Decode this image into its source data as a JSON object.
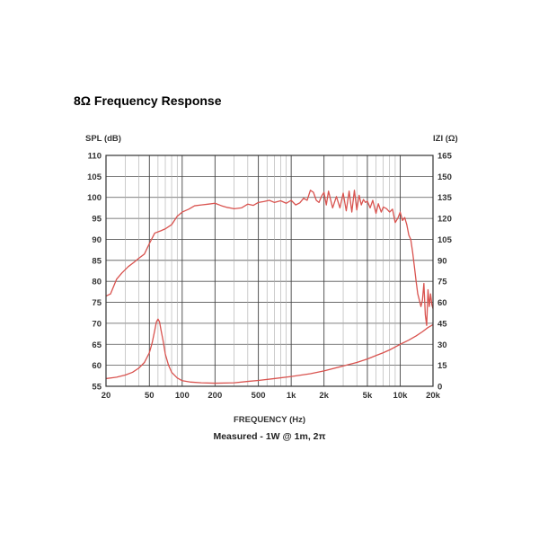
{
  "page_title": "8Ω Frequency Response",
  "chart_data": {
    "type": "line",
    "left_axis_label": "SPL (dB)",
    "right_axis_label": "IZI (Ω)",
    "xlabel": "FREQUENCY (Hz)",
    "caption": "Measured - 1W @ 1m, 2π",
    "x_scale": "log",
    "xlim": [
      20,
      20000
    ],
    "ylim_left": [
      55,
      110
    ],
    "ylim_right": [
      0,
      165
    ],
    "x_ticks": [
      {
        "value": 20,
        "label": "20"
      },
      {
        "value": 50,
        "label": "50"
      },
      {
        "value": 100,
        "label": "100"
      },
      {
        "value": 200,
        "label": "200"
      },
      {
        "value": 500,
        "label": "500"
      },
      {
        "value": 1000,
        "label": "1k"
      },
      {
        "value": 2000,
        "label": "2k"
      },
      {
        "value": 5000,
        "label": "5k"
      },
      {
        "value": 10000,
        "label": "10k"
      },
      {
        "value": 20000,
        "label": "20k"
      }
    ],
    "y_ticks_left": [
      110,
      105,
      100,
      95,
      90,
      85,
      80,
      75,
      70,
      65,
      60,
      55
    ],
    "y_ticks_right": [
      165,
      150,
      135,
      120,
      105,
      90,
      75,
      60,
      45,
      30,
      15,
      0
    ],
    "grid": true,
    "line_color": "#d9534f",
    "series": [
      {
        "axis": "left",
        "x": [
          20,
          22,
          25,
          28,
          32,
          36,
          40,
          45,
          50,
          56,
          63,
          70,
          80,
          90,
          100,
          115,
          130,
          150,
          175,
          200,
          230,
          260,
          300,
          350,
          400,
          450,
          500,
          560,
          630,
          700,
          800,
          900,
          1000,
          1100,
          1200,
          1300,
          1400,
          1500,
          1600,
          1700,
          1800,
          1900,
          2000,
          2100,
          2200,
          2400,
          2600,
          2800,
          3000,
          3200,
          3400,
          3600,
          3800,
          4000,
          4200,
          4400,
          4600,
          4800,
          5000,
          5300,
          5600,
          6000,
          6300,
          6700,
          7000,
          7500,
          8000,
          8500,
          9000,
          9500,
          10000,
          10500,
          11000,
          11500,
          12000,
          12500,
          13000,
          13500,
          14000,
          14500,
          15000,
          15500,
          16000,
          16500,
          17000,
          17500,
          18000,
          18500,
          19000,
          19500,
          20000
        ],
        "values": [
          76.5,
          77,
          80.5,
          82,
          83.5,
          84.5,
          85.5,
          86.5,
          89,
          91.5,
          92,
          92.5,
          93.5,
          95.5,
          96.5,
          97.2,
          98,
          98.2,
          98.4,
          98.6,
          98,
          97.6,
          97.3,
          97.5,
          98.4,
          98.1,
          98.8,
          99,
          99.3,
          98.8,
          99.2,
          98.6,
          99.3,
          98.2,
          98.7,
          99.8,
          99.3,
          101.7,
          101.2,
          99.3,
          98.8,
          100.3,
          101.2,
          98.2,
          101.5,
          97.5,
          100.2,
          97.5,
          101,
          96.8,
          101.5,
          96.5,
          101.7,
          97,
          100.5,
          98.2,
          99.5,
          98.8,
          99.1,
          97.5,
          99.3,
          96.2,
          98.5,
          96.5,
          97.7,
          97.3,
          96.5,
          97.2,
          94,
          95,
          96.5,
          94.5,
          95.2,
          93.5,
          91,
          90,
          87,
          83.5,
          80,
          77,
          75.5,
          74,
          75.5,
          79.5,
          72,
          69.5,
          78,
          74,
          77,
          74.5,
          73.5
        ]
      },
      {
        "axis": "right",
        "x": [
          20,
          25,
          30,
          35,
          40,
          45,
          50,
          53,
          56,
          58,
          60,
          62,
          64,
          67,
          70,
          75,
          80,
          90,
          100,
          120,
          150,
          200,
          300,
          400,
          500,
          700,
          1000,
          1500,
          2000,
          3000,
          4000,
          5000,
          6000,
          7000,
          8000,
          10000,
          12000,
          14000,
          16000,
          18000,
          20000
        ],
        "values": [
          5.5,
          6.5,
          8,
          10,
          13,
          17,
          24,
          31,
          40,
          46,
          48,
          46,
          40,
          32,
          23,
          15,
          10,
          6,
          4,
          3,
          2.5,
          2.2,
          2.5,
          3.5,
          4.2,
          5.5,
          7,
          9,
          11,
          14.5,
          17,
          19.5,
          22,
          24,
          26,
          30,
          33,
          36,
          39,
          42,
          44
        ]
      }
    ]
  }
}
